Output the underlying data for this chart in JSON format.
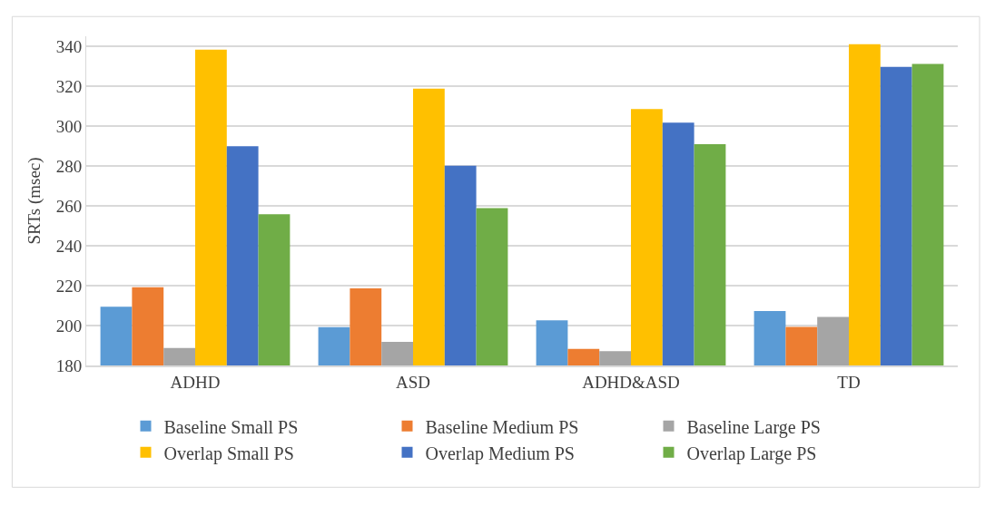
{
  "chart_data": {
    "type": "bar",
    "ylabel": "SRTs (msec)",
    "categories": [
      "ADHD",
      "ASD",
      "ADHD&ASD",
      "TD"
    ],
    "series": [
      {
        "name": "Baseline Small PS",
        "color": "#5b9bd5",
        "values": [
          209.4,
          199.2,
          202.6,
          207.3
        ]
      },
      {
        "name": "Baseline Medium PS",
        "color": "#ed7d31",
        "values": [
          219.2,
          218.6,
          188.3,
          199.3
        ]
      },
      {
        "name": "Baseline Large PS",
        "color": "#a5a5a5",
        "values": [
          188.8,
          191.8,
          187.2,
          204.3
        ]
      },
      {
        "name": "Overlap Small PS",
        "color": "#ffc000",
        "values": [
          338.3,
          318.7,
          308.5,
          341
        ]
      },
      {
        "name": "Overlap Medium PS",
        "color": "#4472c4",
        "values": [
          289.9,
          280.1,
          301.7,
          329.7
        ]
      },
      {
        "name": "Overlap Large PS",
        "color": "#70ad47",
        "values": [
          255.8,
          258.9,
          290.9,
          331.1
        ]
      }
    ],
    "ylim": [
      180,
      345
    ],
    "yticks": [
      180,
      200,
      220,
      240,
      260,
      280,
      300,
      320,
      340
    ],
    "grid": "y",
    "legend": "bottom"
  }
}
